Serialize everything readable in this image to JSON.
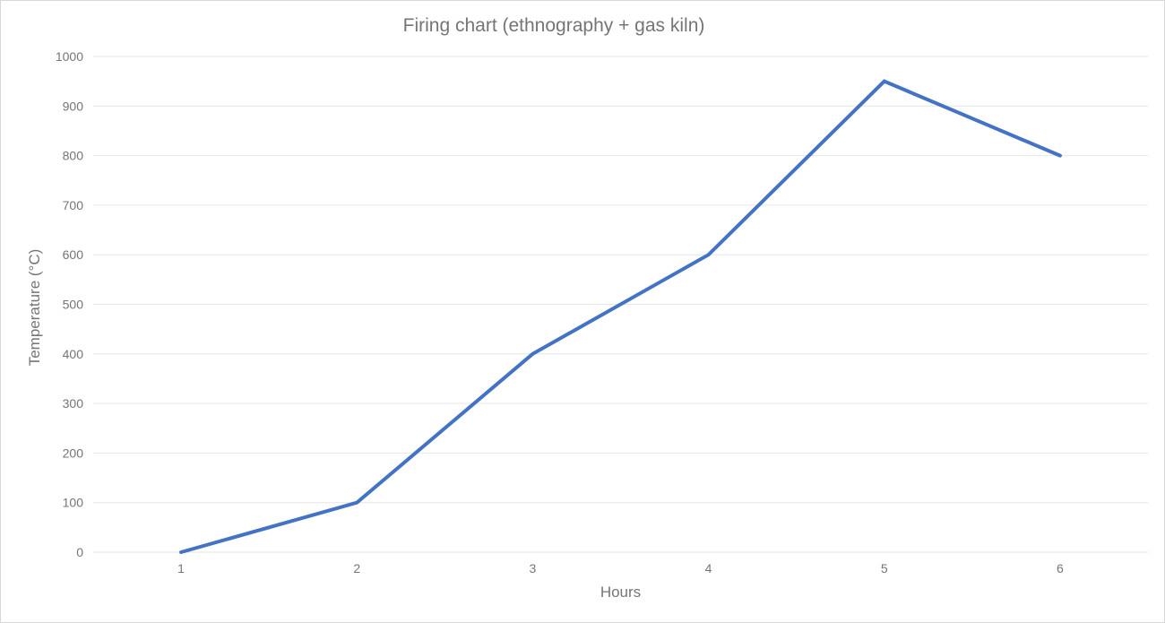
{
  "chart_data": {
    "type": "line",
    "title": "Firing chart (ethnography + gas kiln)",
    "xlabel": "Hours",
    "ylabel": "Temperature (°C)",
    "x": [
      1,
      2,
      3,
      4,
      5,
      6
    ],
    "series": [
      {
        "values": [
          0,
          100,
          400,
          600,
          950,
          800
        ],
        "color": "#4472c4",
        "line_width": 4
      }
    ],
    "ylim": [
      0,
      1000
    ],
    "y_ticks": [
      0,
      100,
      200,
      300,
      400,
      500,
      600,
      700,
      800,
      900,
      1000
    ],
    "grid": true,
    "legend_position": "none",
    "gridline_color": "#e6e6e6",
    "text_color": "#757575",
    "background": "#ffffff",
    "border_color": "#d8d8d8"
  }
}
